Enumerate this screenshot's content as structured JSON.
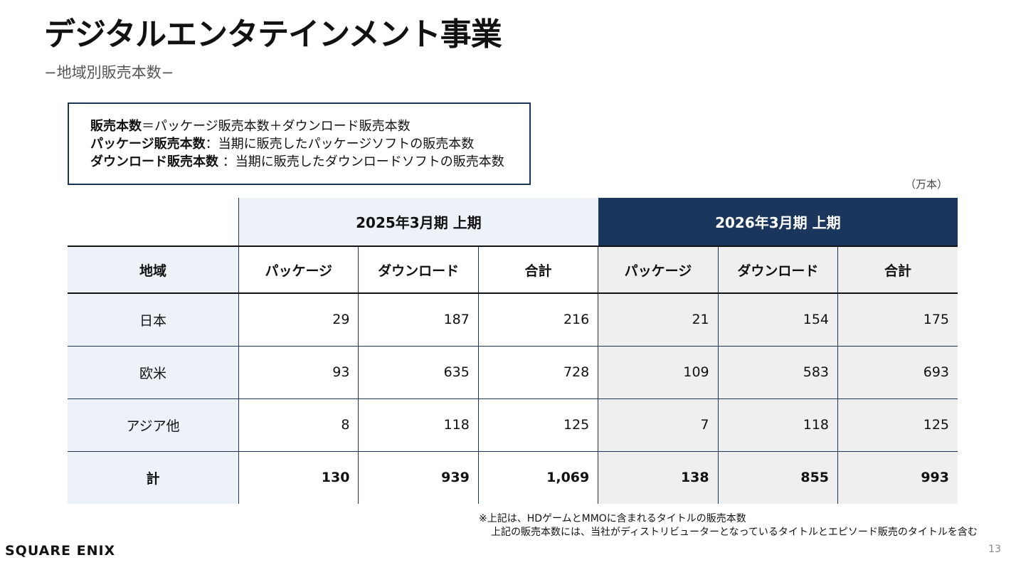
{
  "title": "デジタルエンタテインメント事業",
  "subtitle": "−地域別販売本数−",
  "definitions": {
    "line1_bold": "販売本数",
    "line1_rest": "＝パッケージ販売本数＋ダウンロード販売本数",
    "line2_bold": "パッケージ販売本数",
    "line2_rest": "：当期に販売したパッケージソフトの販売本数",
    "line3_bold": "ダウンロード販売本数",
    "line3_rest": " ：当期に販売したダウンロードソフトの販売本数"
  },
  "unit": "（万本）",
  "table": {
    "period_prev": "2025年3月期  上期",
    "period_curr": "2026年3月期  上期",
    "region_header": "地域",
    "col_package": "パッケージ",
    "col_download": "ダウンロード",
    "col_total": "合計",
    "rows": [
      {
        "region": "日本",
        "prev": [
          "29",
          "187",
          "216"
        ],
        "curr": [
          "21",
          "154",
          "175"
        ]
      },
      {
        "region": "欧米",
        "prev": [
          "93",
          "635",
          "728"
        ],
        "curr": [
          "109",
          "583",
          "693"
        ]
      },
      {
        "region": "アジア他",
        "prev": [
          "8",
          "118",
          "125"
        ],
        "curr": [
          "7",
          "118",
          "125"
        ]
      },
      {
        "region": "計",
        "prev": [
          "130",
          "939",
          "1,069"
        ],
        "curr": [
          "138",
          "855",
          "993"
        ]
      }
    ]
  },
  "notes": {
    "line1": "※上記は、HDゲームとMMOに含まれるタイトルの販売本数",
    "line2": "上記の販売本数には、当社がディストリビューターとなっているタイトルとエピソード販売のタイトルを含む"
  },
  "logo": "SQUARE ENIX",
  "page_number": "13"
}
